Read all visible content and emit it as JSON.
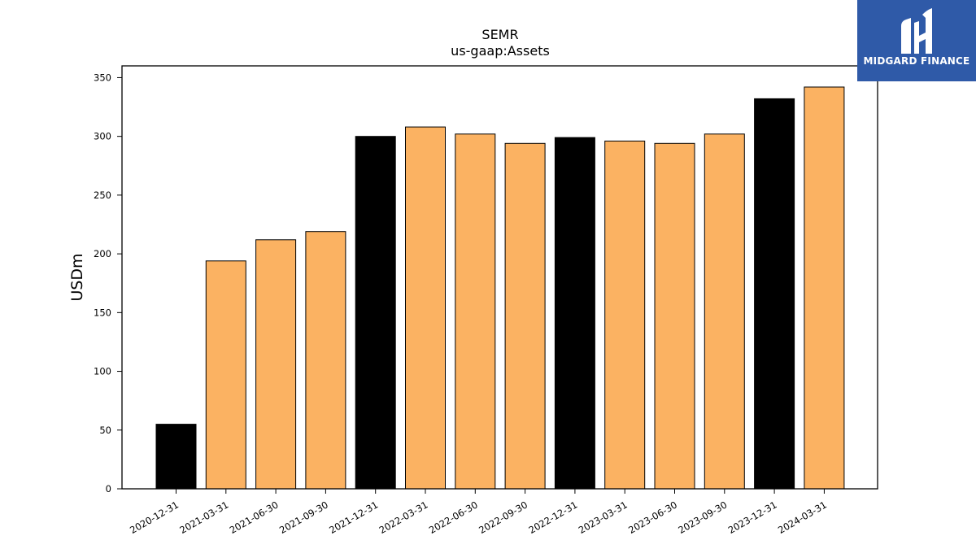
{
  "chart_data": {
    "type": "bar",
    "title": "SEMR",
    "subtitle": "us-gaap:Assets",
    "xlabel": "",
    "ylabel": "USDm",
    "ylim": [
      0,
      360
    ],
    "yticks": [
      0,
      50,
      100,
      150,
      200,
      250,
      300,
      350
    ],
    "categories": [
      "2020-12-31",
      "2021-03-31",
      "2021-06-30",
      "2021-09-30",
      "2021-12-31",
      "2022-03-31",
      "2022-06-30",
      "2022-09-30",
      "2022-12-31",
      "2023-03-31",
      "2023-06-30",
      "2023-09-30",
      "2023-12-31",
      "2024-03-31"
    ],
    "values": [
      55,
      194,
      212,
      219,
      300,
      308,
      302,
      294,
      299,
      296,
      294,
      302,
      332,
      342
    ],
    "bar_colors": [
      "#000000",
      "#fbb262",
      "#fbb262",
      "#fbb262",
      "#000000",
      "#fbb262",
      "#fbb262",
      "#fbb262",
      "#000000",
      "#fbb262",
      "#fbb262",
      "#fbb262",
      "#000000",
      "#fbb262"
    ],
    "grid": false,
    "legend": "none"
  },
  "logo": {
    "text": "MIDGARD FINANCE",
    "background": "#2f5aa8"
  }
}
